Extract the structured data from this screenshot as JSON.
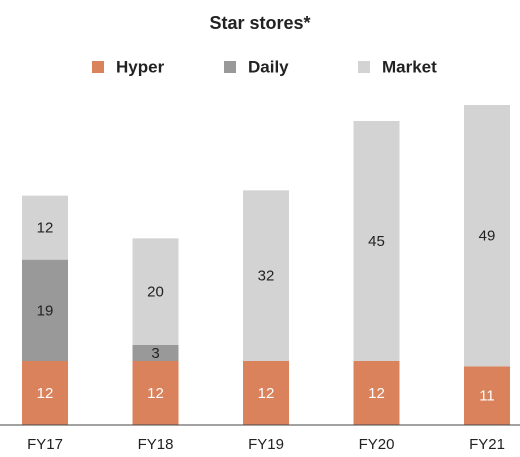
{
  "chart_data": {
    "type": "stacked_bar",
    "title": "Star stores*",
    "categories": [
      "FY17",
      "FY18",
      "FY19",
      "FY20",
      "FY21"
    ],
    "series": [
      {
        "name": "Hyper",
        "color": "#d9825b",
        "values": [
          12,
          12,
          12,
          12,
          11
        ]
      },
      {
        "name": "Daily",
        "color": "#999999",
        "values": [
          19,
          3,
          null,
          null,
          null
        ]
      },
      {
        "name": "Market",
        "color": "#d3d3d3",
        "values": [
          12,
          20,
          32,
          45,
          49
        ]
      }
    ]
  }
}
